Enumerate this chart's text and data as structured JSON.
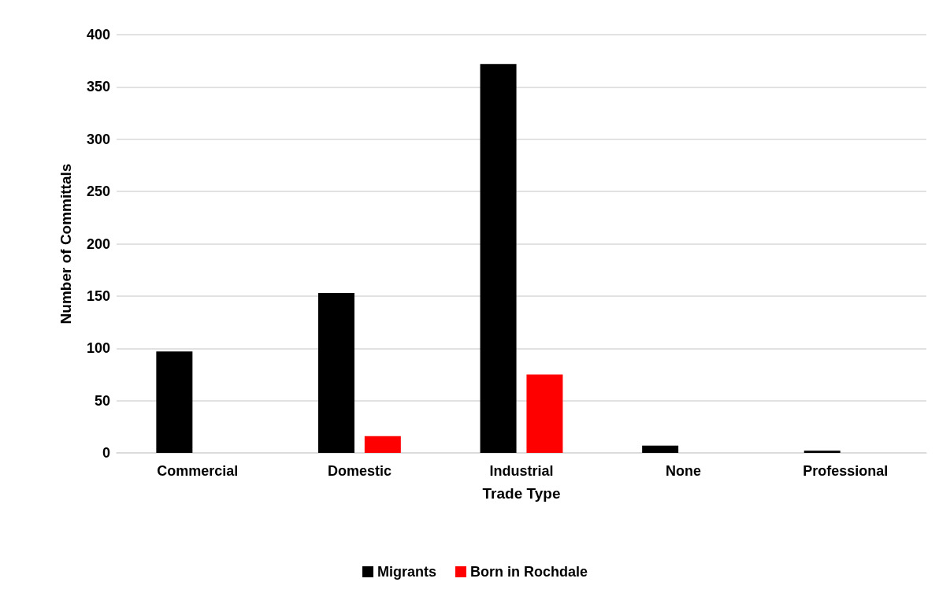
{
  "chart_data": {
    "type": "bar",
    "xlabel": "Trade Type",
    "ylabel": "Number of Committals",
    "categories": [
      "Commercial",
      "Domestic",
      "Industrial",
      "None",
      "Professional"
    ],
    "series": [
      {
        "name": "Migrants",
        "color": "#000000",
        "values": [
          97,
          153,
          372,
          7,
          2
        ]
      },
      {
        "name": "Born in Rochdale",
        "color": "#ff0000",
        "values": [
          0,
          16,
          75,
          0,
          0
        ]
      }
    ],
    "ylim": [
      0,
      400
    ],
    "yticks": [
      0,
      50,
      100,
      150,
      200,
      250,
      300,
      350,
      400
    ],
    "grid": "y",
    "legend": "bottom"
  }
}
